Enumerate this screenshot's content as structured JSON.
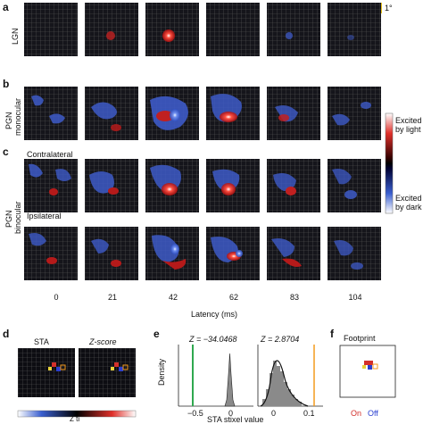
{
  "panels": {
    "a": "a",
    "b": "b",
    "c": "c",
    "d": "d",
    "e": "e",
    "f": "f"
  },
  "rows": {
    "lgn": "LGN",
    "pgn_monocular_1": "PGN",
    "pgn_monocular_2": "monocular",
    "contralateral": "Contralateral",
    "ipsilateral": "Ipsilateral",
    "pgn_binocular_1": "PGN",
    "pgn_binocular_2": "binocular"
  },
  "scale_label": "1°",
  "latencies": [
    "0",
    "21",
    "42",
    "62",
    "83",
    "104"
  ],
  "latency_axis_label": "Latency (ms)",
  "colorbar": {
    "excited_light_1": "Excited",
    "excited_light_2": "by light",
    "excited_dark_1": "Excited",
    "excited_dark_2": "by dark",
    "light_color": "#e0302a",
    "dark_color": "#3a5fd0"
  },
  "panel_d": {
    "sta_label": "STA",
    "zscore_label": "Z-score",
    "bottom_label": "Z ti"
  },
  "panel_e": {
    "ylabel": "Density",
    "z_left": "Z = −34.0468",
    "z_right": "Z = 2.8704",
    "x_ticks_left": [
      "−0.5",
      "0"
    ],
    "x_ticks_right": [
      "0",
      "0.1"
    ],
    "xlabel": "STA stixel value",
    "left_line_color": "#2fa84f",
    "right_line_color": "#f39a1e"
  },
  "panel_f": {
    "title": "Footprint",
    "on_label": "On",
    "off_label": "Off",
    "on_color": "#d3302b",
    "off_color": "#2a3fd0"
  }
}
